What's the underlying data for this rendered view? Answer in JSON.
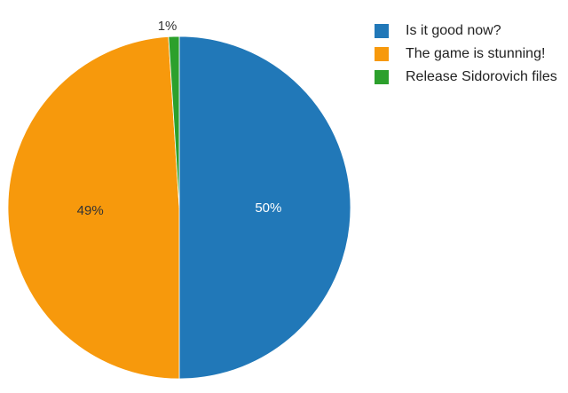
{
  "chart_data": {
    "type": "pie",
    "slices": [
      {
        "label": "Is it good now?",
        "value": 50,
        "display": "50%",
        "color": "#2178b8",
        "text_color": "#ffffff"
      },
      {
        "label": "The game is stunning!",
        "value": 49,
        "display": "49%",
        "color": "#f7990c",
        "text_color": "#333333"
      },
      {
        "label": "Release Sidorovich files",
        "value": 1,
        "display": "1%",
        "color": "#2ca02c",
        "text_color": "#333333"
      }
    ],
    "legend_position": "top-right"
  }
}
